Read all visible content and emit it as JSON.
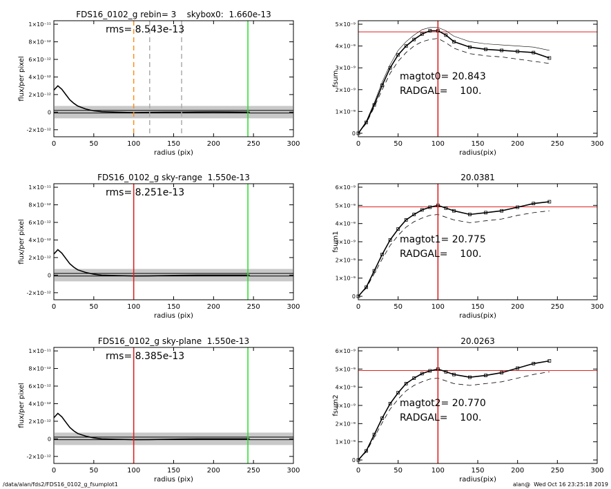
{
  "chart_data": [
    {
      "type": "line",
      "title": "FDS16_0102_g rebin= 3    skybox0:  1.660e-13",
      "xlabel": "radius (pix)",
      "ylabel": "flux/per pixel",
      "xlim": [
        0,
        300
      ],
      "xticks": [
        0,
        50,
        100,
        150,
        200,
        250,
        300
      ],
      "ylim": [
        -2.8e-12,
        1.04e-11
      ],
      "yticks": [
        {
          "value": -2e-12,
          "label": "-2×10⁻¹²"
        },
        0,
        {
          "value": 2e-12,
          "label": "2×10⁻¹²"
        },
        {
          "value": 4e-12,
          "label": "4×10⁻¹²"
        },
        {
          "value": 6e-12,
          "label": "6×10⁻¹²"
        },
        {
          "value": 8e-12,
          "label": "8×10⁻¹²"
        },
        {
          "value": 1e-11,
          "label": "1×10⁻¹¹"
        }
      ],
      "x": [
        0,
        5,
        10,
        15,
        20,
        25,
        30,
        40,
        50,
        60,
        80,
        100,
        120,
        140,
        160,
        180,
        200,
        220,
        245
      ],
      "series": [
        {
          "color": "#000000",
          "style": "solid",
          "values": [
            2.5e-12,
            3e-12,
            2.6e-12,
            2e-12,
            1.4e-12,
            1e-12,
            7e-13,
            3.5e-13,
            1.5e-13,
            5e-14,
            0,
            -5e-14,
            -3e-14,
            0,
            0,
            1e-14,
            2e-14,
            1e-14,
            0
          ]
        }
      ],
      "hlines": [
        {
          "value": 2e-13,
          "color": "#000000",
          "style": "solid"
        },
        {
          "value": -1e-13,
          "color": "#000000",
          "style": "solid"
        }
      ],
      "vlines": [
        {
          "value": 100,
          "color": "#ff8c1a",
          "style": "dashed"
        },
        {
          "value": 120,
          "color": "#aaaaaa",
          "style": "dashed"
        },
        {
          "value": 160,
          "color": "#aaaaaa",
          "style": "dashed"
        },
        {
          "value": 243,
          "color": "#33dd33",
          "style": "solid"
        }
      ],
      "texts": [
        "rms= 8.543e-13"
      ]
    },
    {
      "type": "line",
      "xlabel": "radius(pix)",
      "ylabel": "fsum",
      "xlim": [
        0,
        300
      ],
      "xticks": [
        0,
        50,
        100,
        150,
        200,
        250,
        300
      ],
      "ylim": [
        -1.6e-10,
        5.16e-09
      ],
      "yticks": [
        0,
        {
          "value": 1e-09,
          "label": "1×10⁻⁹"
        },
        {
          "value": 2e-09,
          "label": "2×10⁻⁹"
        },
        {
          "value": 3e-09,
          "label": "3×10⁻⁹"
        },
        {
          "value": 4e-09,
          "label": "4×10⁻⁹"
        },
        {
          "value": 5e-09,
          "label": "5×10⁻⁹"
        }
      ],
      "x": [
        0,
        10,
        20,
        30,
        40,
        50,
        60,
        70,
        80,
        90,
        100,
        110,
        120,
        140,
        160,
        180,
        200,
        220,
        240
      ],
      "series": [
        {
          "color": "#000000",
          "style": "solid",
          "marker": "square",
          "values": [
            0,
            5e-10,
            1.3e-09,
            2.2e-09,
            3e-09,
            3.6e-09,
            4e-09,
            4.3e-09,
            4.55e-09,
            4.7e-09,
            4.7e-09,
            4.5e-09,
            4.2e-09,
            3.95e-09,
            3.85e-09,
            3.8e-09,
            3.75e-09,
            3.7e-09,
            3.45e-09
          ]
        },
        {
          "color": "#000000",
          "style": "dashed",
          "values": [
            0,
            4.5e-10,
            1.2e-09,
            2e-09,
            2.75e-09,
            3.3e-09,
            3.7e-09,
            4e-09,
            4.2e-09,
            4.3e-09,
            4.35e-09,
            4.15e-09,
            3.9e-09,
            3.65e-09,
            3.55e-09,
            3.5e-09,
            3.4e-09,
            3.3e-09,
            3.2e-09
          ]
        },
        {
          "color": "#000000",
          "style": "thin",
          "values": [
            0,
            5.5e-10,
            1.4e-09,
            2.35e-09,
            3.15e-09,
            3.8e-09,
            4.2e-09,
            4.5e-09,
            4.75e-09,
            4.85e-09,
            4.85e-09,
            4.7e-09,
            4.45e-09,
            4.2e-09,
            4.1e-09,
            4.05e-09,
            4e-09,
            3.95e-09,
            3.8e-09
          ]
        }
      ],
      "hlines": [
        {
          "value": 4.65e-09,
          "color": "#dd2222",
          "style": "solid"
        }
      ],
      "vlines": [
        {
          "value": 100,
          "color": "#dd2222",
          "style": "solid"
        }
      ],
      "texts": [
        "magtot0= 20.843",
        "RADGAL=    100."
      ]
    },
    {
      "type": "line",
      "title": "FDS16_0102_g sky-range  1.550e-13",
      "xlabel": "radius (pix)",
      "ylabel": "flux/per pixel",
      "xlim": [
        0,
        300
      ],
      "xticks": [
        0,
        50,
        100,
        150,
        200,
        250,
        300
      ],
      "ylim": [
        -2.8e-12,
        1.04e-11
      ],
      "yticks": [
        {
          "value": -2e-12,
          "label": "-2×10⁻¹²"
        },
        0,
        {
          "value": 2e-12,
          "label": "2×10⁻¹²"
        },
        {
          "value": 4e-12,
          "label": "4×10⁻¹²"
        },
        {
          "value": 6e-12,
          "label": "6×10⁻¹²"
        },
        {
          "value": 8e-12,
          "label": "8×10⁻¹²"
        },
        {
          "value": 1e-11,
          "label": "1×10⁻¹¹"
        }
      ],
      "x": [
        0,
        5,
        10,
        15,
        20,
        25,
        30,
        40,
        50,
        60,
        80,
        100,
        120,
        140,
        160,
        180,
        200,
        220,
        245
      ],
      "series": [
        {
          "color": "#000000",
          "style": "solid",
          "values": [
            2.4e-12,
            2.9e-12,
            2.5e-12,
            1.9e-12,
            1.3e-12,
            9e-13,
            6e-13,
            3e-13,
            1e-13,
            0,
            -5e-14,
            -1e-13,
            -8e-14,
            -5e-14,
            -3e-14,
            0,
            0,
            0,
            0
          ]
        }
      ],
      "hlines": [
        {
          "value": 2e-13,
          "color": "#000000",
          "style": "solid"
        },
        {
          "value": -1e-13,
          "color": "#000000",
          "style": "solid"
        }
      ],
      "vlines": [
        {
          "value": 100,
          "color": "#dd2222",
          "style": "solid"
        },
        {
          "value": 243,
          "color": "#33dd33",
          "style": "solid"
        }
      ],
      "texts": [
        "rms= 8.251e-13"
      ]
    },
    {
      "type": "line",
      "title": "20.0381",
      "xlabel": "radius(pix)",
      "ylabel": "fsum1",
      "xlim": [
        0,
        300
      ],
      "xticks": [
        0,
        50,
        100,
        150,
        200,
        250,
        300
      ],
      "ylim": [
        -1.9e-10,
        6.19e-09
      ],
      "yticks": [
        0,
        {
          "value": 1e-09,
          "label": "1×10⁻⁹"
        },
        {
          "value": 2e-09,
          "label": "2×10⁻⁹"
        },
        {
          "value": 3e-09,
          "label": "3×10⁻⁹"
        },
        {
          "value": 4e-09,
          "label": "4×10⁻⁹"
        },
        {
          "value": 5e-09,
          "label": "5×10⁻⁹"
        },
        {
          "value": 6e-09,
          "label": "6×10⁻⁹"
        }
      ],
      "x": [
        0,
        10,
        20,
        30,
        40,
        50,
        60,
        70,
        80,
        90,
        100,
        110,
        120,
        140,
        160,
        180,
        200,
        220,
        240
      ],
      "series": [
        {
          "color": "#000000",
          "style": "solid",
          "marker": "square",
          "values": [
            0,
            5e-10,
            1.4e-09,
            2.3e-09,
            3.1e-09,
            3.7e-09,
            4.2e-09,
            4.5e-09,
            4.75e-09,
            4.9e-09,
            5e-09,
            4.85e-09,
            4.7e-09,
            4.5e-09,
            4.6e-09,
            4.7e-09,
            4.9e-09,
            5.1e-09,
            5.2e-09
          ]
        },
        {
          "color": "#000000",
          "style": "dashed",
          "values": [
            0,
            4.5e-10,
            1.25e-09,
            2.05e-09,
            2.8e-09,
            3.35e-09,
            3.8e-09,
            4.1e-09,
            4.3e-09,
            4.45e-09,
            4.5e-09,
            4.35e-09,
            4.2e-09,
            4.05e-09,
            4.15e-09,
            4.25e-09,
            4.45e-09,
            4.6e-09,
            4.7e-09
          ]
        }
      ],
      "hlines": [
        {
          "value": 4.92e-09,
          "color": "#dd2222",
          "style": "solid"
        }
      ],
      "vlines": [
        {
          "value": 100,
          "color": "#dd2222",
          "style": "solid"
        }
      ],
      "texts": [
        "magtot1= 20.775",
        "RADGAL=    100."
      ]
    },
    {
      "type": "line",
      "title": "FDS16_0102_g sky-plane  1.550e-13",
      "xlabel": "radius (pix)",
      "ylabel": "flux/per pixel",
      "xlim": [
        0,
        300
      ],
      "xticks": [
        0,
        50,
        100,
        150,
        200,
        250,
        300
      ],
      "ylim": [
        -2.8e-12,
        1.04e-11
      ],
      "yticks": [
        {
          "value": -2e-12,
          "label": "-2×10⁻¹²"
        },
        0,
        {
          "value": 2e-12,
          "label": "2×10⁻¹²"
        },
        {
          "value": 4e-12,
          "label": "4×10⁻¹²"
        },
        {
          "value": 6e-12,
          "label": "6×10⁻¹²"
        },
        {
          "value": 8e-12,
          "label": "8×10⁻¹²"
        },
        {
          "value": 1e-11,
          "label": "1×10⁻¹¹"
        }
      ],
      "x": [
        0,
        5,
        10,
        15,
        20,
        25,
        30,
        40,
        50,
        60,
        80,
        100,
        120,
        140,
        160,
        180,
        200,
        220,
        245
      ],
      "series": [
        {
          "color": "#000000",
          "style": "solid",
          "values": [
            2.4e-12,
            2.9e-12,
            2.5e-12,
            1.9e-12,
            1.3e-12,
            9e-13,
            6e-13,
            3e-13,
            1e-13,
            0,
            -5e-14,
            -1e-13,
            -8e-14,
            -5e-14,
            -3e-14,
            0,
            0,
            0,
            0
          ]
        }
      ],
      "hlines": [
        {
          "value": 2e-13,
          "color": "#000000",
          "style": "solid"
        },
        {
          "value": -1e-13,
          "color": "#000000",
          "style": "solid"
        }
      ],
      "vlines": [
        {
          "value": 100,
          "color": "#dd2222",
          "style": "solid"
        },
        {
          "value": 243,
          "color": "#33dd33",
          "style": "solid"
        }
      ],
      "texts": [
        "rms= 8.385e-13"
      ]
    },
    {
      "type": "line",
      "title": "20.0263",
      "xlabel": "radius(pix)",
      "ylabel": "fsum2",
      "xlim": [
        0,
        300
      ],
      "xticks": [
        0,
        50,
        100,
        150,
        200,
        250,
        300
      ],
      "ylim": [
        -1.9e-10,
        6.19e-09
      ],
      "yticks": [
        0,
        {
          "value": 1e-09,
          "label": "1×10⁻⁹"
        },
        {
          "value": 2e-09,
          "label": "2×10⁻⁹"
        },
        {
          "value": 3e-09,
          "label": "3×10⁻⁹"
        },
        {
          "value": 4e-09,
          "label": "4×10⁻⁹"
        },
        {
          "value": 5e-09,
          "label": "5×10⁻⁹"
        },
        {
          "value": 6e-09,
          "label": "6×10⁻⁹"
        }
      ],
      "x": [
        0,
        10,
        20,
        30,
        40,
        50,
        60,
        70,
        80,
        90,
        100,
        110,
        120,
        140,
        160,
        180,
        200,
        220,
        240
      ],
      "series": [
        {
          "color": "#000000",
          "style": "solid",
          "marker": "square",
          "values": [
            0,
            5e-10,
            1.4e-09,
            2.3e-09,
            3.1e-09,
            3.7e-09,
            4.2e-09,
            4.5e-09,
            4.75e-09,
            4.9e-09,
            5e-09,
            4.85e-09,
            4.7e-09,
            4.55e-09,
            4.65e-09,
            4.8e-09,
            5.05e-09,
            5.3e-09,
            5.45e-09
          ]
        },
        {
          "color": "#000000",
          "style": "dashed",
          "values": [
            0,
            4.5e-10,
            1.25e-09,
            2.05e-09,
            2.8e-09,
            3.35e-09,
            3.8e-09,
            4.1e-09,
            4.3e-09,
            4.45e-09,
            4.5e-09,
            4.35e-09,
            4.2e-09,
            4.1e-09,
            4.2e-09,
            4.3e-09,
            4.5e-09,
            4.7e-09,
            4.85e-09
          ]
        }
      ],
      "hlines": [
        {
          "value": 4.92e-09,
          "color": "#dd2222",
          "style": "solid"
        }
      ],
      "vlines": [
        {
          "value": 100,
          "color": "#dd2222",
          "style": "solid"
        }
      ],
      "texts": [
        "magtot2= 20.770",
        "RADGAL=    100."
      ]
    }
  ],
  "footer": {
    "left": "/data/alan/fds2/FDS16_0102_g_fsumplot1",
    "right": "alan@  Wed Oct 16 23:25:18 2019"
  }
}
